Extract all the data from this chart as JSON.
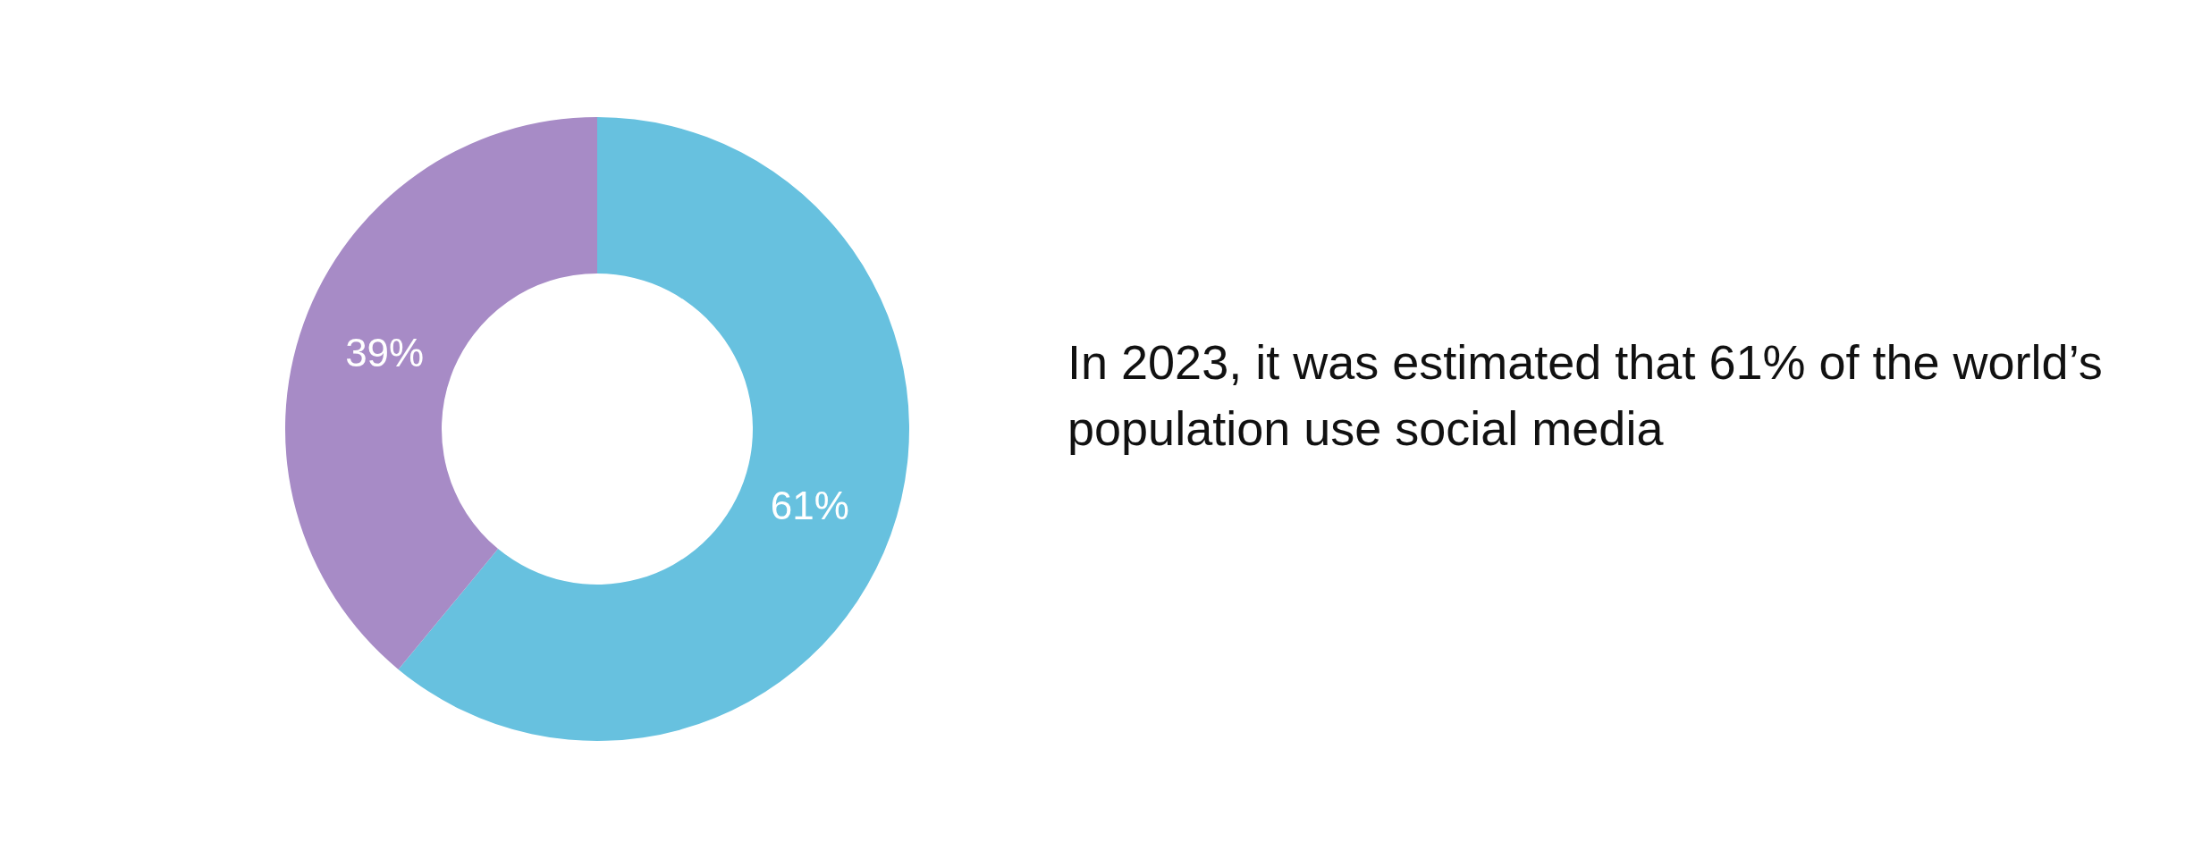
{
  "chart_data": {
    "type": "donut",
    "categories": [
      null,
      null
    ],
    "values": [
      61,
      39
    ],
    "colors": [
      "#67c1df",
      "#a78bc6"
    ],
    "value_labels": [
      "61%",
      "39%"
    ],
    "annotations": [
      "In 2023, it was estimated that 61% of the world’s population use social media"
    ]
  }
}
